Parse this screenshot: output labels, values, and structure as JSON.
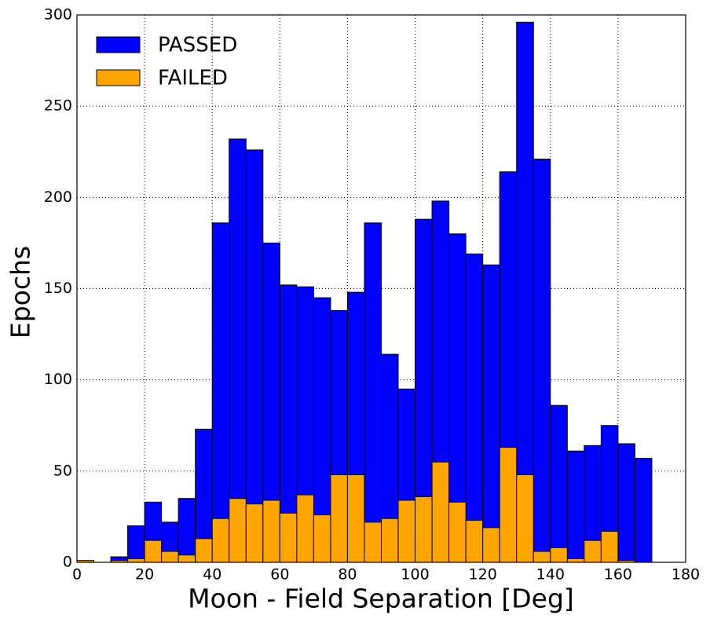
{
  "chart_data": {
    "type": "histogram",
    "xlabel": "Moon - Field Separation [Deg]",
    "ylabel": "Epochs",
    "bins": [
      0,
      5,
      10,
      15,
      20,
      25,
      30,
      35,
      40,
      45,
      50,
      55,
      60,
      65,
      70,
      75,
      80,
      85,
      90,
      95,
      100,
      105,
      110,
      115,
      120,
      125,
      130,
      135,
      140,
      145,
      150,
      155,
      160,
      165,
      170,
      175,
      180
    ],
    "series": [
      {
        "name": "PASSED",
        "color": "#0000ff",
        "values": [
          0,
          0,
          3,
          20,
          33,
          22,
          35,
          73,
          186,
          232,
          226,
          175,
          152,
          151,
          145,
          138,
          148,
          186,
          114,
          95,
          188,
          198,
          180,
          169,
          163,
          214,
          296,
          221,
          86,
          61,
          64,
          75,
          65,
          57,
          0,
          0
        ]
      },
      {
        "name": "FAILED",
        "color": "#ffa500",
        "values": [
          1,
          0,
          1,
          2,
          12,
          6,
          4,
          13,
          24,
          35,
          32,
          34,
          27,
          37,
          26,
          48,
          48,
          22,
          24,
          34,
          36,
          55,
          33,
          23,
          19,
          63,
          48,
          6,
          8,
          2,
          12,
          17,
          1,
          0,
          0,
          0
        ]
      }
    ],
    "xlim": [
      0,
      180
    ],
    "xticks": [
      0,
      20,
      40,
      60,
      80,
      100,
      120,
      140,
      160,
      180
    ],
    "ylim": [
      0,
      300
    ],
    "yticks": [
      0,
      50,
      100,
      150,
      200,
      250,
      300
    ],
    "grid": true,
    "legend": "upper left"
  }
}
